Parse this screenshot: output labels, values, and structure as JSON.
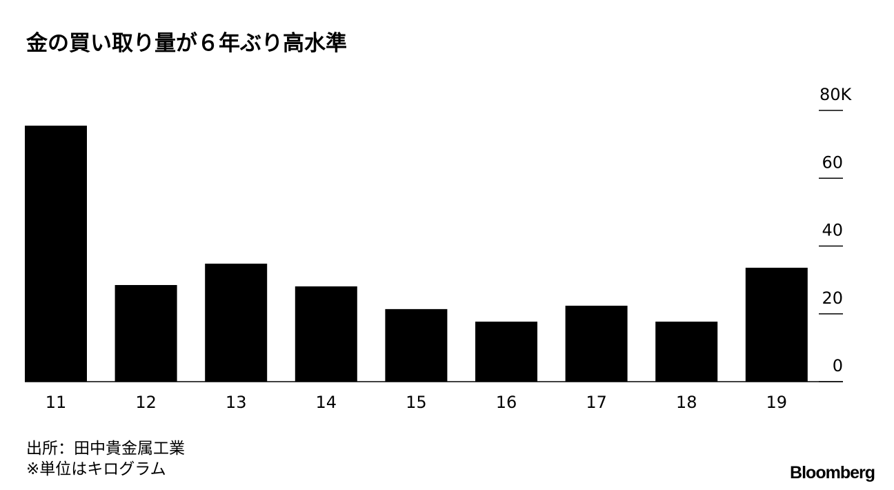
{
  "chart_data": {
    "type": "bar",
    "title": "金の買い取り量が６年ぶり高水準",
    "categories": [
      "11",
      "12",
      "13",
      "14",
      "15",
      "16",
      "17",
      "18",
      "19"
    ],
    "values": [
      75.5,
      28.5,
      34.8,
      28.1,
      21.4,
      17.7,
      22.4,
      17.7,
      33.6
    ],
    "color": "#000000",
    "ylim": [
      0,
      80
    ],
    "yticks": [
      0,
      20,
      40,
      60,
      {
        "value": 80,
        "label": "80K"
      }
    ],
    "axis_side": "right",
    "notes": [
      "出所：田中貴金属工業",
      "※単位はキログラム"
    ],
    "brand": "Bloomberg"
  }
}
